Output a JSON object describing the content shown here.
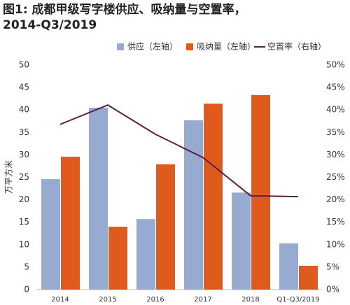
{
  "chart_data": {
    "type": "bar_line",
    "title": [
      "图1: 成都甲级写字楼供应、吸纳量与空置率，",
      "2014-Q3/2019"
    ],
    "y_label": "万平方米",
    "categories": [
      "2014",
      "2015",
      "2016",
      "2017",
      "2018",
      "Q1-Q3/2019"
    ],
    "series": [
      {
        "name": "供应（左轴）",
        "color": "#97aad0",
        "kind": "bar",
        "values": [
          24.6,
          40.5,
          15.7,
          37.7,
          21.6,
          10.3
        ]
      },
      {
        "name": "吸纳量（左轴）",
        "color": "#e05a1c",
        "kind": "bar",
        "values": [
          29.6,
          14.0,
          27.9,
          41.4,
          43.3,
          5.3
        ]
      },
      {
        "name": "空置率（右轴）",
        "color": "#5a1f45",
        "kind": "line",
        "axis": "y2",
        "values": [
          36.8,
          41.1,
          34.6,
          29.4,
          20.9,
          20.7
        ]
      }
    ],
    "ylim": [
      0,
      50
    ],
    "yticks": [
      0,
      5,
      10,
      15,
      20,
      25,
      30,
      35,
      40,
      45,
      50
    ],
    "y2lim": [
      0,
      50
    ],
    "y2ticks": [
      {
        "value": 0,
        "label": "0%"
      },
      {
        "value": 5,
        "label": "5%"
      },
      {
        "value": 10,
        "label": "10%"
      },
      {
        "value": 15,
        "label": "15%"
      },
      {
        "value": 20,
        "label": "20%"
      },
      {
        "value": 25,
        "label": "25%"
      },
      {
        "value": 30,
        "label": "30%"
      },
      {
        "value": 35,
        "label": "35%"
      },
      {
        "value": 40,
        "label": "40%"
      },
      {
        "value": 45,
        "label": "45%"
      },
      {
        "value": 50,
        "label": "50%"
      }
    ],
    "grid": false
  }
}
